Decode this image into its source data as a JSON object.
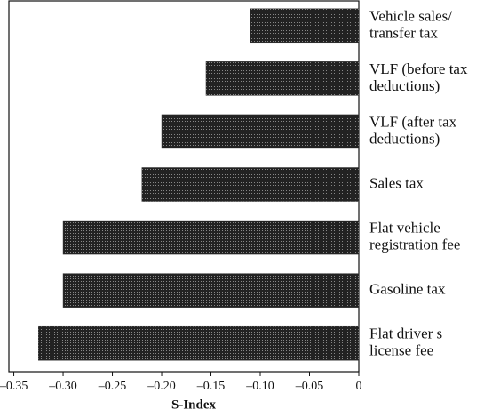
{
  "chart_data": {
    "type": "bar",
    "orientation": "horizontal",
    "x_label": "S-Index",
    "categories": [
      "Vehicle sales/\ntransfer tax",
      "VLF (before tax\ndeductions)",
      "VLF (after tax\ndeductions)",
      "Sales tax",
      "Flat vehicle\nregistration fee",
      "Gasoline tax",
      "Flat driver s\nlicense fee"
    ],
    "values": [
      -0.11,
      -0.155,
      -0.2,
      -0.22,
      -0.3,
      -0.3,
      -0.325
    ],
    "color": "#333333",
    "xlim": [
      -0.355,
      0
    ],
    "xticks": [
      {
        "value": -0.35,
        "label": "–0.35"
      },
      {
        "value": -0.3,
        "label": "–0.30"
      },
      {
        "value": -0.25,
        "label": "–0.25"
      },
      {
        "value": -0.2,
        "label": "–0.20"
      },
      {
        "value": -0.15,
        "label": "–0.15"
      },
      {
        "value": -0.1,
        "label": "–0.10"
      },
      {
        "value": -0.05,
        "label": "–0.05"
      },
      0
    ]
  }
}
